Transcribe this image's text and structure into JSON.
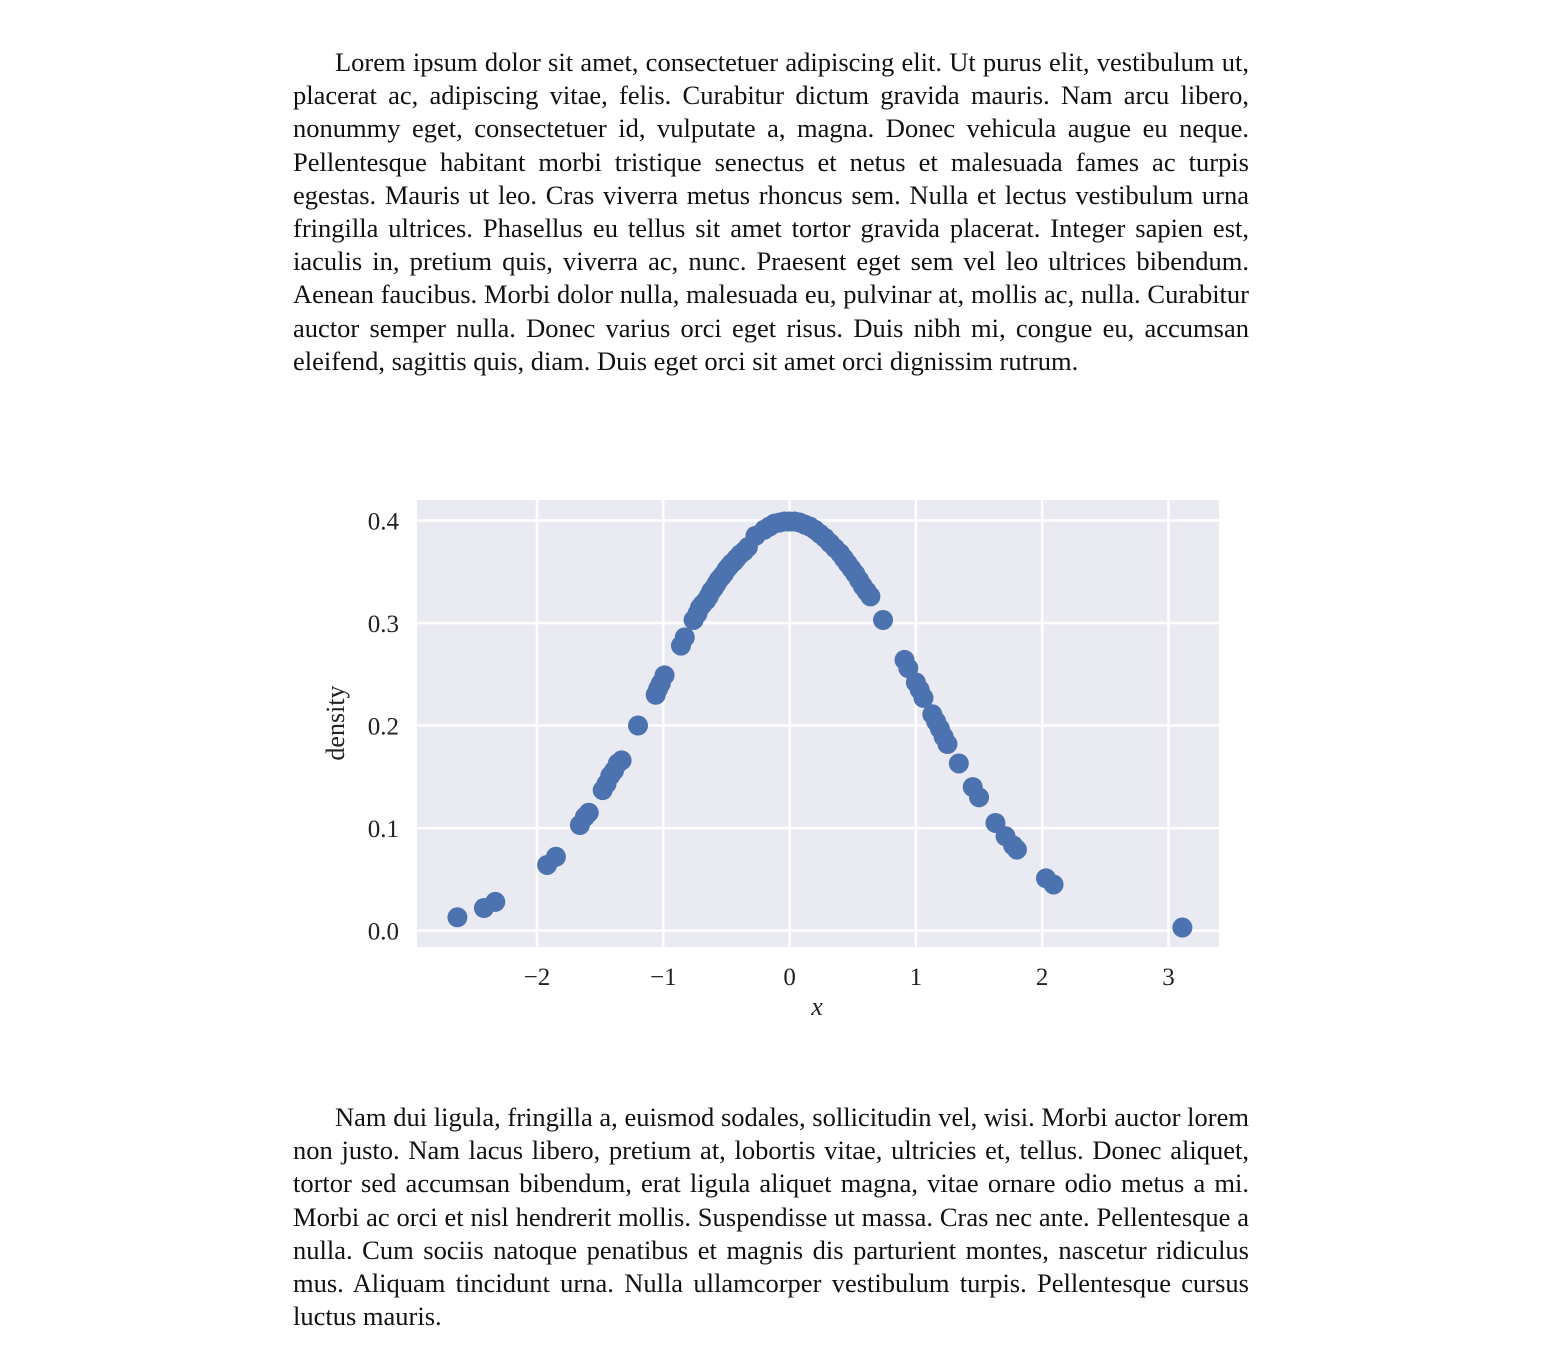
{
  "paragraphs": [
    "Lorem ipsum dolor sit amet, consectetuer adipiscing elit. Ut purus elit, vestibulum ut, placerat ac, adipiscing vitae, felis. Curabitur dictum gravida mauris. Nam arcu libero, nonummy eget, consectetuer id, vulputate a, magna. Donec vehicula augue eu neque. Pellentesque habitant morbi tristique senectus et netus et malesuada fames ac turpis egestas. Mauris ut leo. Cras viverra metus rhoncus sem. Nulla et lectus vestibulum urna fringilla ultrices. Phasellus eu tellus sit amet tortor gravida placerat. Integer sapien est, iaculis in, pretium quis, viverra ac, nunc. Praesent eget sem vel leo ultrices bibendum. Aenean faucibus. Morbi dolor nulla, malesuada eu, pulvinar at, mollis ac, nulla. Curabitur auctor semper nulla. Donec varius orci eget risus. Duis nibh mi, congue eu, accumsan eleifend, sagittis quis, diam. Duis eget orci sit amet orci dignissim rutrum.",
    "Nam dui ligula, fringilla a, euismod sodales, sollicitudin vel, wisi. Morbi auctor lorem non justo. Nam lacus libero, pretium at, lobortis vitae, ultricies et, tellus. Donec aliquet, tortor sed accumsan bibendum, erat ligula aliquet magna, vitae ornare odio metus a mi. Morbi ac orci et nisl hendrerit mollis. Suspendisse ut massa. Cras nec ante. Pellentesque a nulla. Cum sociis natoque penatibus et magnis dis parturient montes, nascetur ridiculus mus. Aliquam tincidunt urna. Nulla ullamcorper vestibulum turpis. Pellentesque cursus luctus mauris."
  ],
  "chart_data": {
    "type": "scatter",
    "xlabel": "x",
    "ylabel": "density",
    "xlim": [
      -2.95,
      3.4
    ],
    "ylim": [
      -0.016,
      0.42
    ],
    "xticks": [
      -2,
      -1,
      0,
      1,
      2,
      3
    ],
    "xtick_labels": [
      "−2",
      "−1",
      "0",
      "1",
      "2",
      "3"
    ],
    "yticks": [
      0.0,
      0.1,
      0.2,
      0.3,
      0.4
    ],
    "ytick_labels": [
      "0.0",
      "0.1",
      "0.2",
      "0.3",
      "0.4"
    ],
    "grid": true,
    "colors": {
      "background": "#eaeaf2",
      "grid": "#ffffff",
      "marker": "#4c72b0"
    },
    "series": [
      {
        "x": [
          -2.63,
          -2.42,
          -2.33,
          -1.92,
          -1.85,
          -1.66,
          -1.62,
          -1.59,
          -1.48,
          -1.45,
          -1.42,
          -1.39,
          -1.36,
          -1.33,
          -1.2,
          -1.06,
          -1.04,
          -1.02,
          -0.99,
          -0.86,
          -0.83,
          -0.76,
          -0.73,
          -0.71,
          -0.69,
          -0.66,
          -0.64,
          -0.62,
          -0.6,
          -0.58,
          -0.56,
          -0.54,
          -0.52,
          -0.5,
          -0.48,
          -0.46,
          -0.44,
          -0.42,
          -0.39,
          -0.36,
          -0.33,
          -0.27,
          -0.2,
          -0.16,
          -0.12,
          -0.08,
          -0.04,
          0.0,
          0.04,
          0.08,
          0.12,
          0.16,
          0.2,
          0.24,
          0.28,
          0.32,
          0.36,
          0.4,
          0.43,
          0.46,
          0.49,
          0.52,
          0.55,
          0.58,
          0.61,
          0.64,
          0.74,
          0.91,
          0.94,
          1.0,
          1.03,
          1.06,
          1.13,
          1.16,
          1.19,
          1.22,
          1.25,
          1.34,
          1.45,
          1.5,
          1.63,
          1.71,
          1.77,
          1.8,
          2.03,
          2.09,
          3.11
        ],
        "y": [
          0.013,
          0.022,
          0.028,
          0.064,
          0.072,
          0.103,
          0.111,
          0.115,
          0.137,
          0.143,
          0.151,
          0.156,
          0.163,
          0.166,
          0.2,
          0.23,
          0.236,
          0.241,
          0.249,
          0.278,
          0.286,
          0.303,
          0.309,
          0.315,
          0.318,
          0.322,
          0.326,
          0.331,
          0.334,
          0.338,
          0.342,
          0.345,
          0.348,
          0.352,
          0.355,
          0.358,
          0.36,
          0.363,
          0.367,
          0.37,
          0.374,
          0.385,
          0.391,
          0.394,
          0.397,
          0.398,
          0.399,
          0.399,
          0.399,
          0.398,
          0.396,
          0.394,
          0.391,
          0.387,
          0.383,
          0.378,
          0.373,
          0.368,
          0.363,
          0.358,
          0.353,
          0.348,
          0.342,
          0.336,
          0.331,
          0.326,
          0.303,
          0.264,
          0.256,
          0.242,
          0.235,
          0.227,
          0.211,
          0.204,
          0.197,
          0.189,
          0.182,
          0.163,
          0.14,
          0.13,
          0.105,
          0.092,
          0.083,
          0.079,
          0.051,
          0.045,
          0.003
        ]
      }
    ]
  }
}
